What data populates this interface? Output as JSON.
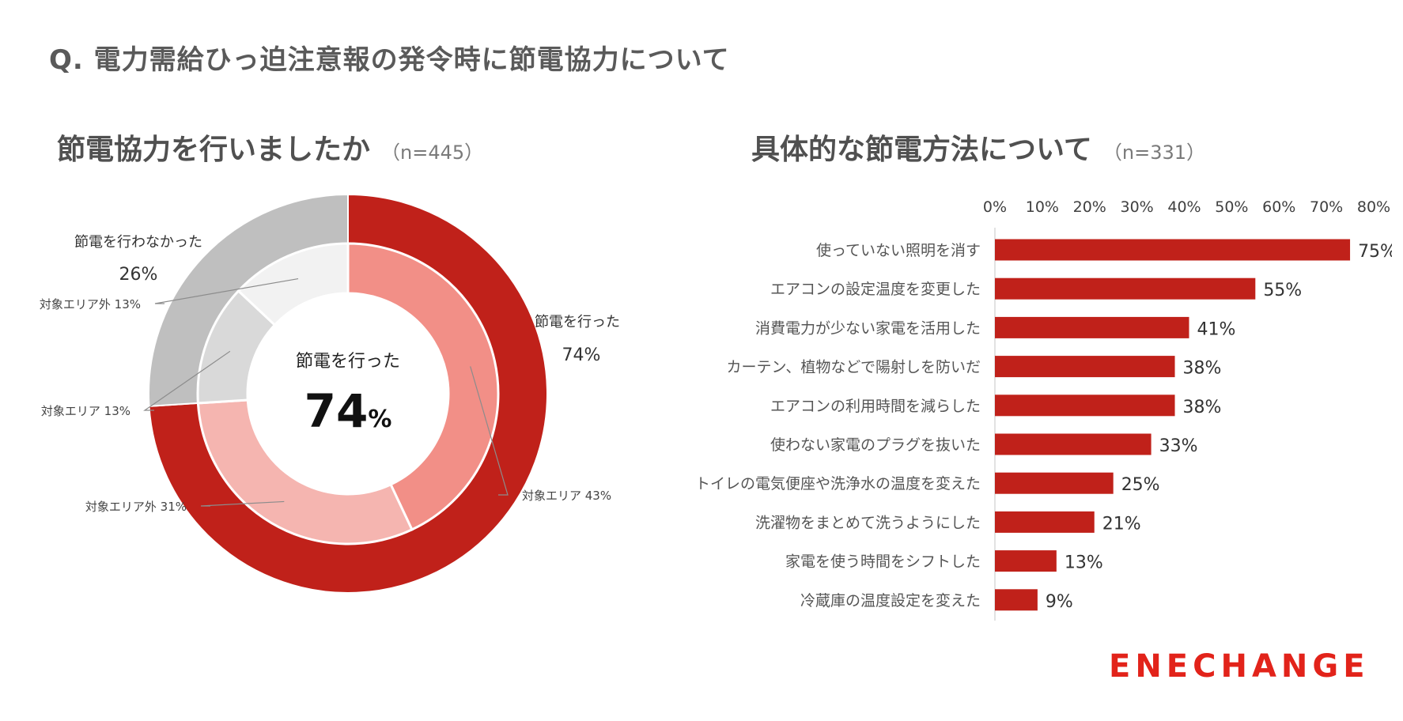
{
  "main_title": "Q. 電力需給ひっ迫注意報の発令時に節電協力について",
  "left": {
    "title": "節電協力を行いましたか",
    "n": "（n=445）"
  },
  "right": {
    "title": "具体的な節電方法について",
    "n": "（n=331）"
  },
  "logo": "ENECHANGE",
  "colors": {
    "accent": "#c0211a",
    "outer_no": "#bfbfbf",
    "inner_yes_target": "#f28f87",
    "inner_yes_other": "#f5b5b0",
    "inner_no_target": "#d9d9d9",
    "inner_no_other": "#f2f2f2"
  },
  "chart_data": [
    {
      "type": "donut",
      "title": "節電協力を行いましたか",
      "n_label": "（n=445）",
      "center_label": "節電を行った",
      "center_value": "74",
      "center_unit": "%",
      "outer": [
        {
          "name": "節電を行った",
          "value": 74,
          "label": "74%"
        },
        {
          "name": "節電を行わなかった",
          "value": 26,
          "label": "26%"
        }
      ],
      "inner": [
        {
          "name": "対象エリア",
          "value": 43,
          "group": "節電を行った",
          "label": "対象エリア 43%"
        },
        {
          "name": "対象エリア外",
          "value": 31,
          "group": "節電を行った",
          "label": "対象エリア外 31%"
        },
        {
          "name": "対象エリア",
          "value": 13,
          "group": "節電を行わなかった",
          "label": "対象エリア 13%"
        },
        {
          "name": "対象エリア外",
          "value": 13,
          "group": "節電を行わなかった",
          "label": "対象エリア外 13%"
        }
      ]
    },
    {
      "type": "bar",
      "orientation": "horizontal",
      "title": "具体的な節電方法について",
      "n_label": "（n=331）",
      "xlim": [
        0,
        80
      ],
      "xticks": [
        "0%",
        "10%",
        "20%",
        "30%",
        "40%",
        "50%",
        "60%",
        "70%",
        "80%"
      ],
      "categories": [
        "使っていない照明を消す",
        "エアコンの設定温度を変更した",
        "消費電力が少ない家電を活用した",
        "カーテン、植物などで陽射しを防いだ",
        "エアコンの利用時間を減らした",
        "使わない家電のプラグを抜いた",
        "トイレの電気便座や洗浄水の温度を変えた",
        "洗濯物をまとめて洗うようにした",
        "家電を使う時間をシフトした",
        "冷蔵庫の温度設定を変えた"
      ],
      "values": [
        75,
        55,
        41,
        38,
        38,
        33,
        25,
        21,
        13,
        9
      ],
      "value_labels": [
        "75%",
        "55%",
        "41%",
        "38%",
        "38%",
        "33%",
        "25%",
        "21%",
        "13%",
        "9%"
      ]
    }
  ]
}
